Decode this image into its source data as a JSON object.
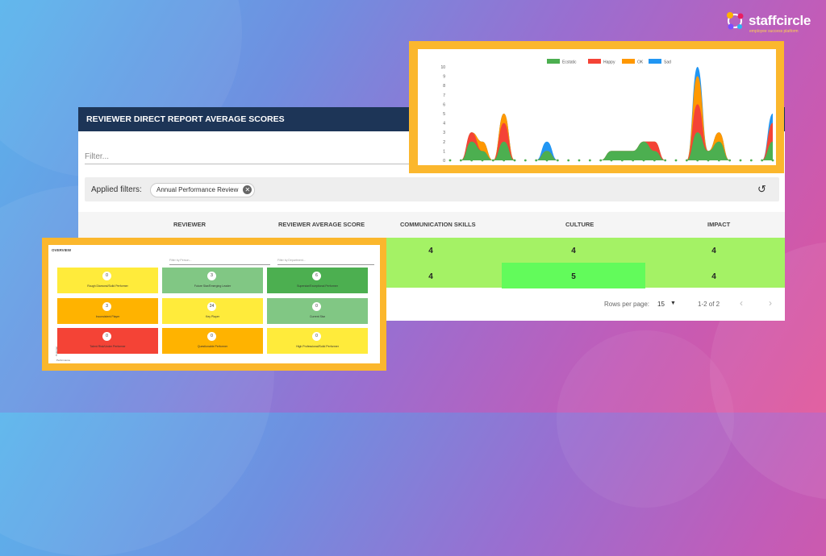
{
  "brand": {
    "name": "staffcircle",
    "tagline": "employee success platform"
  },
  "colors": {
    "panel_header": "#1d3557",
    "highlight_green": "#a4f265",
    "culture_green": "#62fb5b",
    "frame_orange": "#fbb72d"
  },
  "report": {
    "title": "REVIEWER DIRECT REPORT AVERAGE SCORES",
    "filter_placeholder": "Filter...",
    "applied_label": "Applied filters:",
    "chip_label": "Annual Performance Review",
    "columns": [
      "REVIEWER",
      "REVIEWER AVERAGE SCORE",
      "COMMUNICATION SKILLS",
      "CULTURE",
      "IMPACT"
    ],
    "rows": [
      {
        "communication": "4",
        "culture": "4",
        "impact": "4"
      },
      {
        "communication": "4",
        "culture": "5",
        "impact": "4"
      }
    ],
    "rows_per_page_label": "Rows per page:",
    "rows_per_page": "15",
    "pagination": "1-2 of 2"
  },
  "chart_data": {
    "type": "area",
    "legend": [
      "Ecstatic",
      "Happy",
      "OK",
      "Sad"
    ],
    "colors": [
      "#4caf50",
      "#f44336",
      "#ff9800",
      "#2196f3"
    ],
    "ylim": [
      0,
      10
    ],
    "yticks": [
      "0",
      "1",
      "2",
      "3",
      "4",
      "5",
      "6",
      "7",
      "8",
      "9",
      "10"
    ],
    "series": [
      {
        "name": "Ecstatic",
        "values": [
          0,
          0,
          2,
          1,
          0,
          2,
          0,
          0,
          0,
          1,
          0,
          0,
          0,
          0,
          0,
          1,
          1,
          1,
          2,
          1,
          0,
          0,
          0,
          3,
          1,
          2,
          0,
          0,
          0,
          0,
          2
        ]
      },
      {
        "name": "Happy",
        "values": [
          0,
          0,
          1,
          0,
          0,
          2,
          0,
          0,
          0,
          0,
          0,
          0,
          0,
          0,
          0,
          0,
          0,
          0,
          0,
          1,
          0,
          0,
          0,
          3,
          0,
          0,
          0,
          0,
          0,
          0,
          2
        ]
      },
      {
        "name": "OK",
        "values": [
          0,
          0,
          0,
          1,
          0,
          1,
          0,
          0,
          0,
          0,
          0,
          0,
          0,
          0,
          0,
          0,
          0,
          0,
          0,
          0,
          0,
          0,
          0,
          3,
          0,
          1,
          0,
          0,
          0,
          0,
          0
        ]
      },
      {
        "name": "Sad",
        "values": [
          0,
          0,
          0,
          0,
          0,
          0,
          0,
          0,
          0,
          1,
          0,
          0,
          0,
          0,
          0,
          0,
          0,
          0,
          0,
          0,
          0,
          0,
          0,
          1,
          0,
          0,
          0,
          0,
          0,
          0,
          1
        ]
      }
    ]
  },
  "overview": {
    "title": "OVERVIEW",
    "filter_person": "Filter by Person...",
    "filter_department": "Filter by Department...",
    "ylabel": "Potential",
    "xlabel": "Performance",
    "tiles": [
      {
        "count": "0",
        "label": "Rough Diamond/Solid Performer",
        "color": "#ffeb3b"
      },
      {
        "count": "3",
        "label": "Future Star/Emerging Leader",
        "color": "#81c784"
      },
      {
        "count": "6",
        "label": "Superstar/Exceptional Performer",
        "color": "#4caf50"
      },
      {
        "count": "3",
        "label": "Inconsistent Player",
        "color": "#ffb300"
      },
      {
        "count": "24",
        "label": "Key Player",
        "color": "#ffeb3b"
      },
      {
        "count": "0",
        "label": "Current Star",
        "color": "#81c784"
      },
      {
        "count": "0",
        "label": "Talent Risk/Under Performer",
        "color": "#f44336"
      },
      {
        "count": "0",
        "label": "Questionable Performer",
        "color": "#ffb300"
      },
      {
        "count": "0",
        "label": "High Professional/Solid Performer",
        "color": "#ffeb3b"
      }
    ]
  }
}
